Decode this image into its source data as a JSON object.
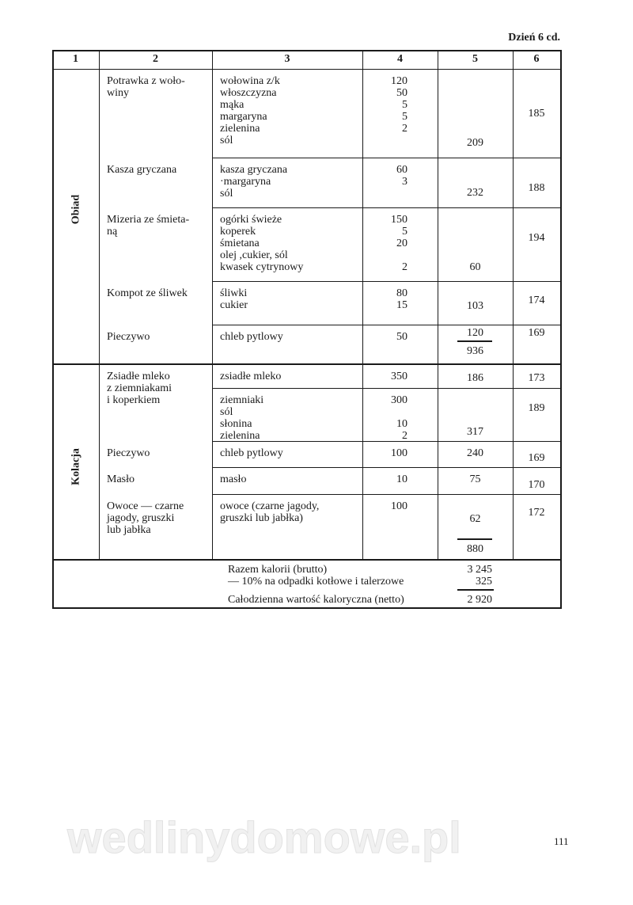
{
  "page_header": "Dzień 6 cd.",
  "column_headers": [
    "1",
    "2",
    "3",
    "4",
    "5",
    "6"
  ],
  "sections": [
    {
      "label": "Obiad",
      "rows": [
        {
          "dish": "Potrawka z woło-\nwiny",
          "ingredients": [
            [
              "wołowina z/k",
              "120"
            ],
            [
              "włoszczyzna",
              "50"
            ],
            [
              "mąka",
              "5"
            ],
            [
              "margaryna",
              "5"
            ],
            [
              "zielenina",
              "2"
            ],
            [
              "sól",
              ""
            ]
          ],
          "kcal": "209",
          "col6": "185"
        },
        {
          "dish": "Kasza gryczana",
          "ingredients": [
            [
              "kasza gryczana",
              "60"
            ],
            [
              "·margaryna",
              "3"
            ],
            [
              "sól",
              ""
            ]
          ],
          "kcal": "232",
          "col6": "188"
        },
        {
          "dish": "Mizeria ze śmieta-\nną",
          "ingredients": [
            [
              "ogórki świeże",
              "150"
            ],
            [
              "koperek",
              "5"
            ],
            [
              "śmietana",
              "20"
            ],
            [
              "olej ,cukier, sól",
              ""
            ],
            [
              "kwasek cytrynowy",
              "2"
            ]
          ],
          "kcal": "60",
          "col6": "194"
        },
        {
          "dish": "Kompot ze śliwek",
          "ingredients": [
            [
              "śliwki",
              "80"
            ],
            [
              "cukier",
              "15"
            ]
          ],
          "kcal": "103",
          "col6": "174"
        },
        {
          "dish": "Pieczywo",
          "ingredients": [
            [
              "chleb pytlowy",
              "50"
            ]
          ],
          "kcal": "120",
          "col6": "169"
        }
      ],
      "subtotal": "936"
    },
    {
      "label": "Kolacja",
      "rows": [
        {
          "dish": "Zsiadłe mleko\nz ziemniakami\ni koperkiem",
          "ingredients": [
            [
              "zsiadłe mleko",
              "350"
            ]
          ],
          "kcal": "186",
          "col6": "173"
        },
        {
          "dish": "",
          "ingredients": [
            [
              "ziemniaki",
              "300"
            ],
            [
              "sól",
              ""
            ],
            [
              "słonina",
              "10"
            ],
            [
              "zielenina",
              "2"
            ]
          ],
          "kcal": "317",
          "col6": "189"
        },
        {
          "dish": "Pieczywo",
          "ingredients": [
            [
              "chleb pytlowy",
              "100"
            ]
          ],
          "kcal": "240",
          "col6": "169"
        },
        {
          "dish": "Masło",
          "ingredients": [
            [
              "masło",
              "10"
            ]
          ],
          "kcal": "75",
          "col6": "170"
        },
        {
          "dish": "Owoce — czarne\njagody, gruszki\nlub jabłka",
          "ingredients": [
            [
              "owoce (czarne jagody,\ngruszki lub jabłka)",
              "100"
            ]
          ],
          "kcal": "62",
          "col6": "172"
        }
      ],
      "subtotal": "880"
    }
  ],
  "totals": {
    "gross_label": "Razem kalorii (brutto)",
    "gross_value": "3 245",
    "waste_label": "— 10% na odpadki kotłowe i talerzowe",
    "waste_value": "325",
    "net_label": "Całodzienna wartość kaloryczna (netto)",
    "net_value": "2 920"
  },
  "page_number": "111",
  "watermark": "wedlinydomowe.pl"
}
